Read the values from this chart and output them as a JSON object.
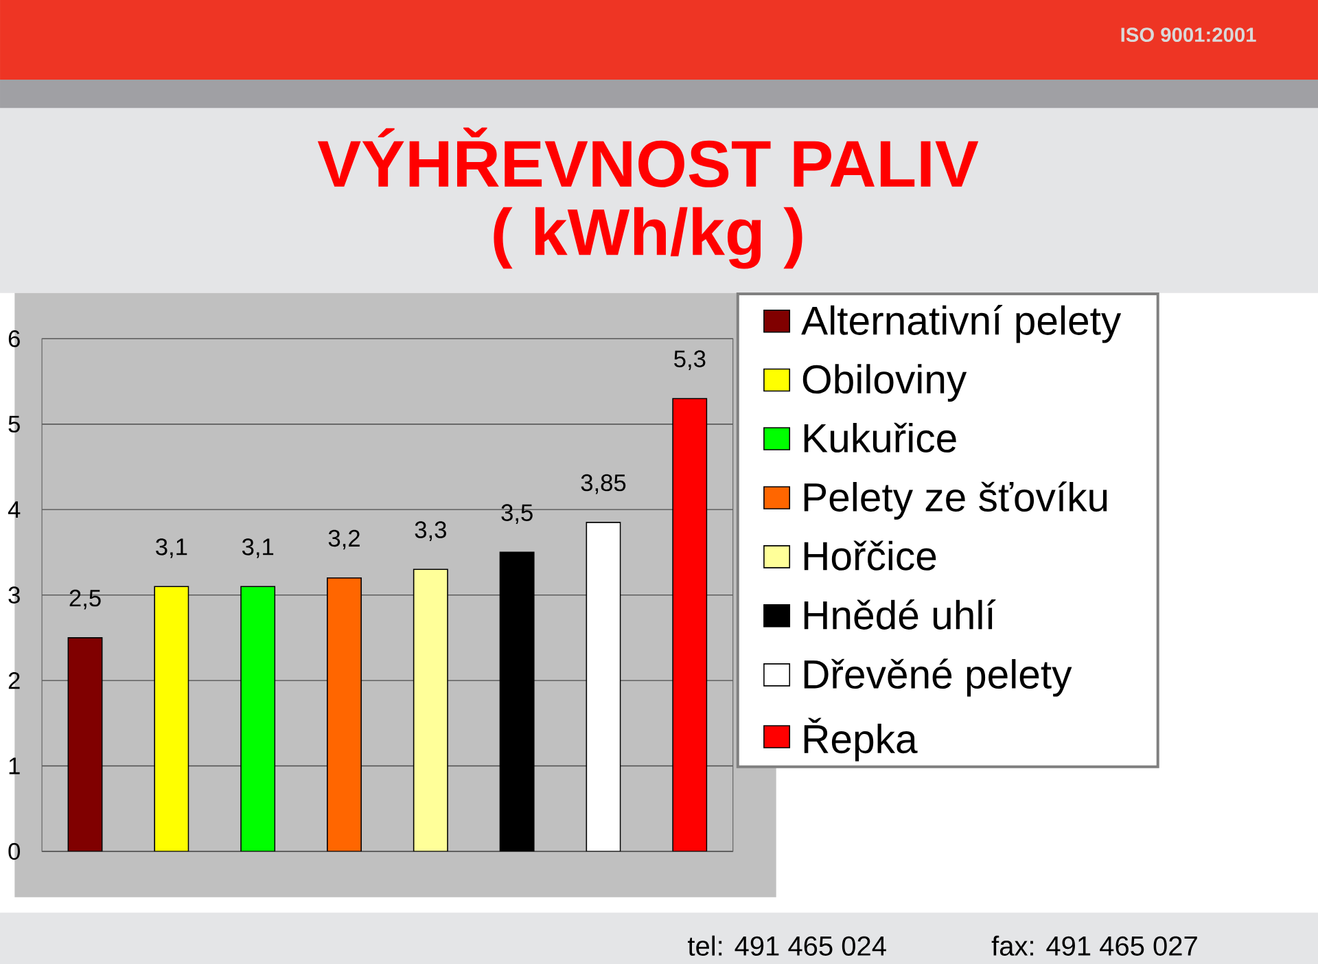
{
  "chart_data": {
    "type": "bar",
    "title": "VÝHŘEVNOST PALIV",
    "subtitle": "( kWh/kg )",
    "annotations": [
      "ISO 9001:2001",
      "tel: 491 465 024",
      "fax: 491 465 027"
    ],
    "categories": [
      null,
      null,
      null,
      null,
      null,
      null,
      null,
      null
    ],
    "series": [
      {
        "name": "Alternativní pelety",
        "color": "#800000",
        "values": [
          2.5,
          null,
          null,
          null,
          null,
          null,
          null,
          null
        ],
        "value_labels": [
          "2,5",
          null,
          null,
          null,
          null,
          null,
          null,
          null
        ]
      },
      {
        "name": "Obiloviny",
        "color": "#ffff00",
        "values": [
          null,
          3.1,
          null,
          null,
          null,
          null,
          null,
          null
        ],
        "value_labels": [
          null,
          "3,1",
          null,
          null,
          null,
          null,
          null,
          null
        ]
      },
      {
        "name": "Kukuřice",
        "color": "#00ff00",
        "values": [
          null,
          null,
          3.1,
          null,
          null,
          null,
          null,
          null
        ],
        "value_labels": [
          null,
          null,
          "3,1",
          null,
          null,
          null,
          null,
          null
        ]
      },
      {
        "name": "Pelety ze šťovíku",
        "color": "#ff6600",
        "values": [
          null,
          null,
          null,
          3.2,
          null,
          null,
          null,
          null
        ],
        "value_labels": [
          null,
          null,
          null,
          "3,2",
          null,
          null,
          null,
          null
        ]
      },
      {
        "name": "Hořčice",
        "color": "#ffff99",
        "values": [
          null,
          null,
          null,
          null,
          3.3,
          null,
          null,
          null
        ],
        "value_labels": [
          null,
          null,
          null,
          null,
          "3,3",
          null,
          null,
          null
        ]
      },
      {
        "name": "Hnědé uhlí",
        "color": "#000000",
        "values": [
          null,
          null,
          null,
          null,
          null,
          3.5,
          null,
          null
        ],
        "value_labels": [
          null,
          null,
          null,
          null,
          null,
          "3,5",
          null,
          null
        ]
      },
      {
        "name": "Dřevěné pelety",
        "color": "#ffffff",
        "values": [
          null,
          null,
          null,
          null,
          null,
          null,
          3.85,
          null
        ],
        "value_labels": [
          null,
          null,
          null,
          null,
          null,
          null,
          "3,85",
          null
        ]
      },
      {
        "name": "Řepka",
        "color": "#ff0000",
        "values": [
          null,
          null,
          null,
          null,
          null,
          null,
          null,
          5.3
        ],
        "value_labels": [
          null,
          null,
          null,
          null,
          null,
          null,
          null,
          "5,3"
        ]
      }
    ],
    "ylim": [
      0,
      6
    ],
    "yticks": [
      0,
      1,
      2,
      3,
      4,
      5,
      6
    ],
    "grid": "y",
    "legend": "right",
    "tick_labels": "y"
  }
}
